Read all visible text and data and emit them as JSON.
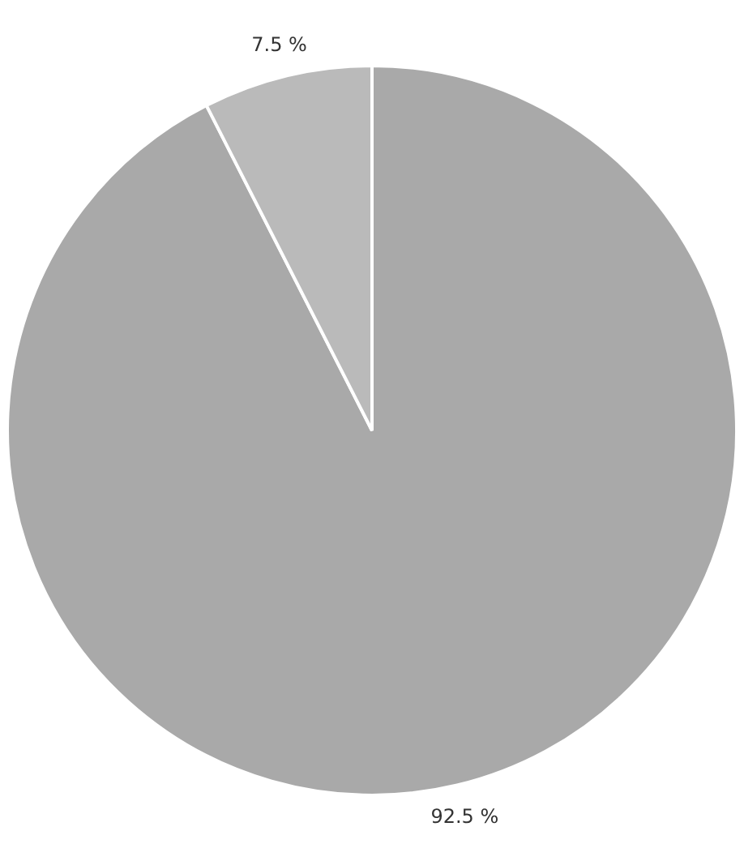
{
  "chart_data": {
    "type": "pie",
    "categories": [
      null,
      null
    ],
    "values": [
      92.5,
      7.5
    ],
    "colors": [
      "#a9a9a9",
      "#bababa"
    ],
    "value_labels": [
      "92.5 %",
      "7.5 %"
    ],
    "legend": false
  }
}
